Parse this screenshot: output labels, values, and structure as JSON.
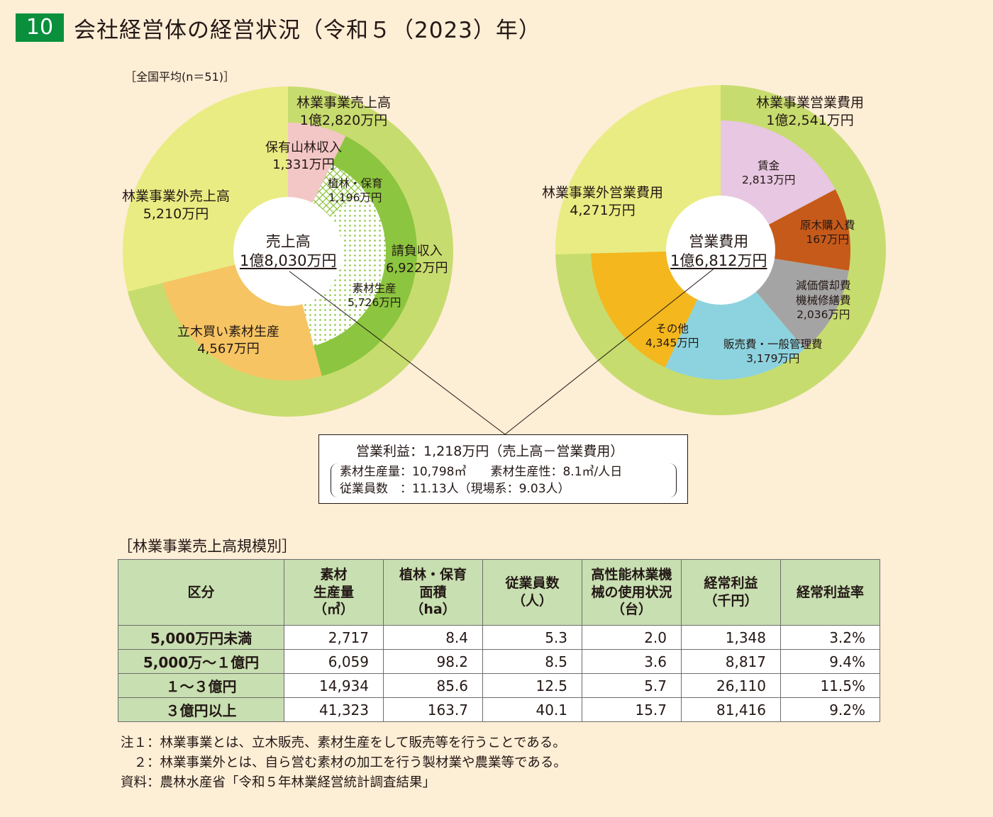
{
  "title": {
    "number": "10",
    "text": "会社経営体の経営状況（令和５（2023）年）"
  },
  "national_average_label": "［全国平均(n＝51)］",
  "colors": {
    "outer_green": "#c7dc6e",
    "outside_yellow": "#e9ec82",
    "pink": "#f3c7c6",
    "contract_green": "#8cc53f",
    "dots_green": "#8cc53f",
    "standing_orange": "#f6c463",
    "wages_lilac": "#e7c7e1",
    "logs_brown": "#c65a1a",
    "depreciation_gray": "#a5a4a4",
    "admin_cyan": "#8dd3df",
    "other_yellow": "#f4b71d"
  },
  "chart_data": [
    {
      "type": "pie",
      "title": "売上高",
      "center_label": "売上高",
      "center_value": "1億8,030万円",
      "outer_ring": [
        {
          "label": "林業事業売上高",
          "value_label": "1億2,820万円",
          "value": 12820
        },
        {
          "label": "林業事業外売上高",
          "value_label": "5,210万円",
          "value": 5210
        }
      ],
      "inner_ring": [
        {
          "label": "保有山林収入",
          "value_label": "1,331万円",
          "value": 1331
        },
        {
          "label": "請負収入",
          "value_label": "6,922万円",
          "value": 6922
        },
        {
          "label": "植林・保育",
          "value_label": "1,196万円",
          "value": 1196,
          "parent": "請負収入"
        },
        {
          "label": "素材生産",
          "value_label": "5,726万円",
          "value": 5726,
          "parent": "請負収入"
        },
        {
          "label": "立木買い素材生産",
          "value_label": "4,567万円",
          "value": 4567
        }
      ],
      "unit": "万円"
    },
    {
      "type": "pie",
      "title": "営業費用",
      "center_label": "営業費用",
      "center_value": "1億6,812万円",
      "outer_ring": [
        {
          "label": "林業事業営業費用",
          "value_label": "1億2,541万円",
          "value": 12541
        },
        {
          "label": "林業事業外営業費用",
          "value_label": "4,271万円",
          "value": 4271
        }
      ],
      "inner_ring": [
        {
          "label": "賃金",
          "value_label": "2,813万円",
          "value": 2813
        },
        {
          "label": "原木購入費",
          "value_label": "167万円",
          "value": 167
        },
        {
          "label": "減価償却費\n機械修繕費",
          "value_label": "2,036万円",
          "value": 2036
        },
        {
          "label": "販売費・一般管理費",
          "value_label": "3,179万円",
          "value": 3179
        },
        {
          "label": "その他",
          "value_label": "4,345万円",
          "value": 4345
        }
      ],
      "unit": "万円"
    },
    {
      "type": "table",
      "title": "［林業事業売上高規模別］",
      "headers": [
        "区分",
        "素材\n生産量\n（㎥）",
        "植林・保育\n面積\n（ha）",
        "従業員数\n（人）",
        "高性能林業機\n械の使用状況\n（台）",
        "経常利益\n（千円）",
        "経常利益率"
      ],
      "rows": [
        [
          "5,000万円未満",
          "2,717",
          "8.4",
          "5.3",
          "2.0",
          "1,348",
          "3.2%"
        ],
        [
          "5,000万～１億円",
          "6,059",
          "98.2",
          "8.5",
          "3.6",
          "8,817",
          "9.4%"
        ],
        [
          "１～３億円",
          "14,934",
          "85.6",
          "12.5",
          "5.7",
          "26,110",
          "11.5%"
        ],
        [
          "３億円以上",
          "41,323",
          "163.7",
          "40.1",
          "15.7",
          "81,416",
          "9.2%"
        ]
      ]
    }
  ],
  "profit_box": {
    "main": "営業利益：1,218万円（売上高－営業費用）",
    "line1_a": "素材生産量：10,798㎥",
    "line1_b": "素材生産性：8.1㎥/人日",
    "line2": "従業員数　：11.13人（現場系：9.03人）"
  },
  "notes": [
    "注１：林業事業とは、立木販売、素材生産をして販売等を行うことである。",
    "　２：林業事業外とは、自ら営む素材の加工を行う製材業や農業等である。",
    "資料：農林水産省「令和５年林業経営統計調査結果」"
  ]
}
